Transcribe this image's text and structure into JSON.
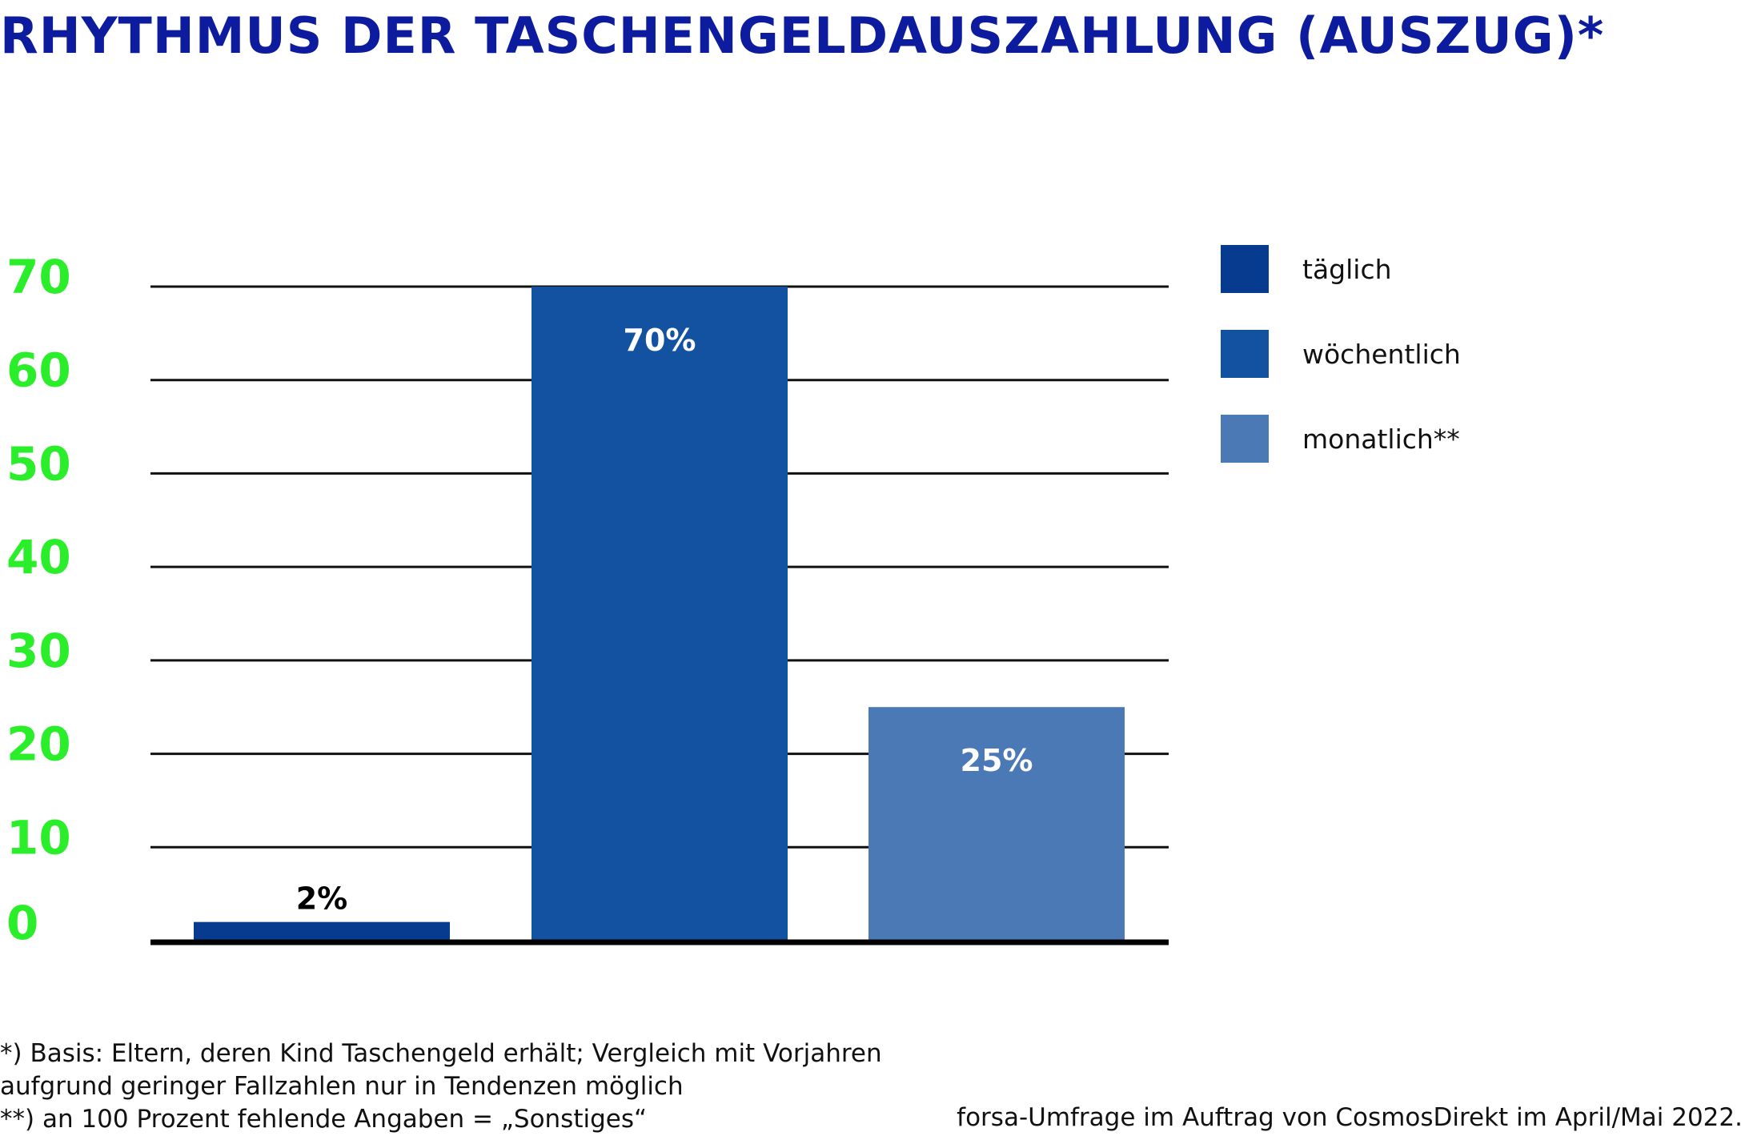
{
  "chart_data": {
    "type": "bar",
    "title": "RHYTHMUS DER TASCHENGELDAUSZAHLUNG (AUSZUG)*",
    "categories": [
      "täglich",
      "wöchentlich",
      "monatlich**"
    ],
    "values": [
      2,
      70,
      25
    ],
    "data_labels": [
      "2%",
      "70%",
      "25%"
    ],
    "colors": [
      "#073b8f",
      "#1352a1",
      "#4b79b6"
    ],
    "label_colors": [
      "#000000",
      "#ffffff",
      "#ffffff"
    ],
    "ylim": [
      0,
      70
    ],
    "yticks": [
      0,
      10,
      20,
      30,
      40,
      50,
      60,
      70
    ],
    "ytick_color": "#2bee2b",
    "grid": true,
    "legend": "right",
    "xlabel": "",
    "ylabel": ""
  },
  "footnotes": [
    "*) Basis: Eltern, deren Kind Taschengeld erhält; Vergleich mit Vorjahren",
    "aufgrund geringer Fallzahlen nur in Tendenzen möglich",
    "**) an 100 Prozent fehlende Angaben = „Sonstiges“"
  ],
  "source": "forsa-Umfrage im Auftrag von CosmosDirekt im April/Mai 2022."
}
